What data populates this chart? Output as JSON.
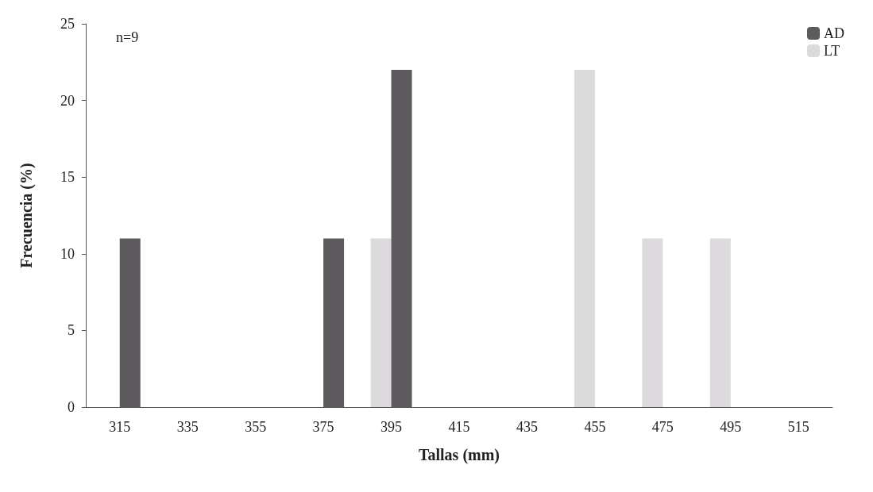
{
  "chart_data": {
    "type": "bar",
    "xlabel": "Tallas (mm)",
    "ylabel": "Frecuencia (%)",
    "categories": [
      "315",
      "335",
      "355",
      "375",
      "395",
      "415",
      "435",
      "455",
      "475",
      "495",
      "515"
    ],
    "series": [
      {
        "name": "AD",
        "color": "#5e5b5e",
        "values": [
          11,
          0,
          0,
          11,
          22,
          0,
          0,
          0,
          0,
          0,
          0
        ]
      },
      {
        "name": "LT",
        "color": "#dcdadc",
        "values": [
          0,
          0,
          0,
          0,
          11,
          0,
          0,
          22,
          11,
          11,
          0
        ]
      }
    ],
    "ylim": [
      0,
      25
    ],
    "yticks": [
      0,
      5,
      10,
      15,
      20,
      25
    ],
    "grid": false,
    "legend": "top right",
    "annotations": [
      "n=9"
    ]
  }
}
